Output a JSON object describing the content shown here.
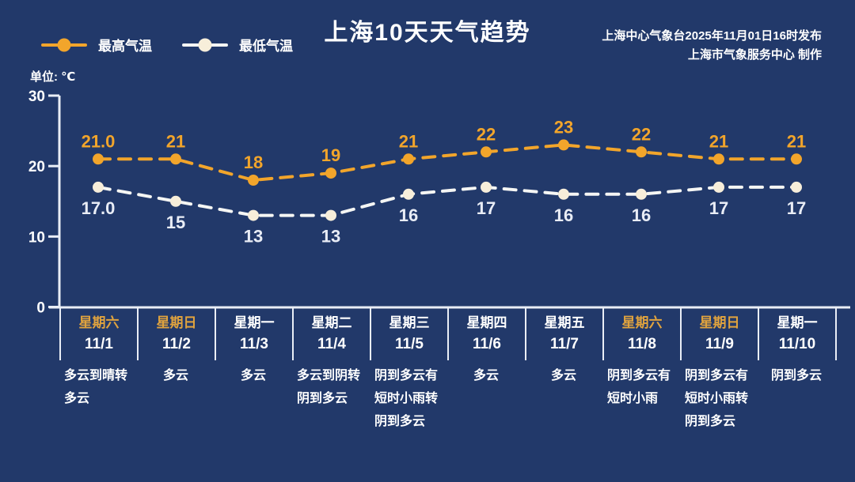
{
  "header": {
    "title": "上海10天天气趋势",
    "publisher_line1": "上海中心气象台2025年11月01日16时发布",
    "publisher_line2": "上海市气象服务中心  制作"
  },
  "legend": {
    "high_label": "最高气温",
    "low_label": "最低气温"
  },
  "unit_label": "单位: ℃",
  "colors": {
    "background": "#22396a",
    "high": "#f2a52b",
    "low_line": "#f5f6f4",
    "low_marker": "#f7eeda",
    "low_text": "#e9edf6",
    "axis": "#eaeef6",
    "weekend_text": "#e0a33e",
    "text": "#ffffff"
  },
  "chart_data": {
    "type": "line",
    "title": "上海10天天气趋势",
    "ylabel": "单位: ℃",
    "ylim": [
      0,
      30
    ],
    "yticks": [
      0,
      10,
      20,
      30
    ],
    "grid": false,
    "legend_position": "top-left",
    "categories": [
      "11/1",
      "11/2",
      "11/3",
      "11/4",
      "11/5",
      "11/6",
      "11/7",
      "11/8",
      "11/9",
      "11/10"
    ],
    "series": [
      {
        "name": "最高气温",
        "values": [
          21,
          21,
          18,
          19,
          21,
          22,
          23,
          22,
          21,
          21
        ],
        "labels": [
          "21.0",
          "21",
          "18",
          "19",
          "21",
          "22",
          "23",
          "22",
          "21",
          "21"
        ],
        "style": "dashed-line-with-dots"
      },
      {
        "name": "最低气温",
        "values": [
          17,
          15,
          13,
          13,
          16,
          17,
          16,
          16,
          17,
          17
        ],
        "labels": [
          "17.0",
          "15",
          "13",
          "13",
          "16",
          "17",
          "16",
          "16",
          "17",
          "17"
        ],
        "style": "dashed-line-with-dots"
      }
    ]
  },
  "days": [
    {
      "weekday": "星期六",
      "date": "11/1",
      "weather": "多云到晴转多云",
      "weekend": true
    },
    {
      "weekday": "星期日",
      "date": "11/2",
      "weather": "多云",
      "weekend": true
    },
    {
      "weekday": "星期一",
      "date": "11/3",
      "weather": "多云",
      "weekend": false
    },
    {
      "weekday": "星期二",
      "date": "11/4",
      "weather": "多云到阴转阴到多云",
      "weekend": false
    },
    {
      "weekday": "星期三",
      "date": "11/5",
      "weather": "阴到多云有短时小雨转阴到多云",
      "weekend": false
    },
    {
      "weekday": "星期四",
      "date": "11/6",
      "weather": "多云",
      "weekend": false
    },
    {
      "weekday": "星期五",
      "date": "11/7",
      "weather": "多云",
      "weekend": false
    },
    {
      "weekday": "星期六",
      "date": "11/8",
      "weather": "阴到多云有短时小雨",
      "weekend": true
    },
    {
      "weekday": "星期日",
      "date": "11/9",
      "weather": "阴到多云有短时小雨转阴到多云",
      "weekend": true
    },
    {
      "weekday": "星期一",
      "date": "11/10",
      "weather": "阴到多云",
      "weekend": false
    }
  ]
}
